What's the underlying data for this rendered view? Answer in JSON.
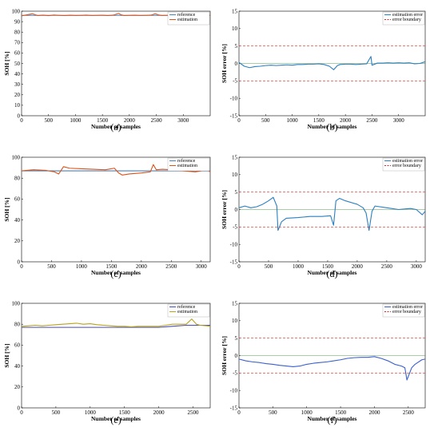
{
  "panels": [
    {
      "caption": "(a)",
      "chart_data": {
        "type": "line",
        "xlabel": "Number of samples",
        "ylabel": "SOH [%]",
        "xlim": [
          0,
          3500
        ],
        "ylim": [
          0,
          100
        ],
        "xticks": [
          0,
          500,
          1000,
          1500,
          2000,
          2500,
          3000
        ],
        "yticks": [
          0,
          10,
          20,
          30,
          40,
          50,
          60,
          70,
          80,
          90,
          100
        ],
        "legend_position": "top-right",
        "series": [
          {
            "name": "reference",
            "color": "#4a7fb8",
            "x": [
              0,
              3500
            ],
            "y": [
              96,
              96
            ]
          },
          {
            "name": "estimation",
            "color": "#d95319",
            "x": [
              0,
              100,
              200,
              300,
              400,
              500,
              600,
              700,
              800,
              900,
              1000,
              1100,
              1200,
              1300,
              1400,
              1500,
              1600,
              1700,
              1800,
              1850,
              1900,
              2000,
              2100,
              2200,
              2300,
              2400,
              2480,
              2550,
              2600,
              2700,
              2800,
              2900,
              3000,
              3100,
              3200,
              3300,
              3400,
              3500
            ],
            "y": [
              95.5,
              96.5,
              97.5,
              95.8,
              96.2,
              95.7,
              96.3,
              96,
              95.8,
              96.1,
              95.9,
              96,
              96.2,
              95.9,
              96,
              96.1,
              95.8,
              96.2,
              97.8,
              96.5,
              95.8,
              96,
              96.1,
              95.9,
              96,
              96.2,
              97.5,
              96.3,
              95.9,
              96,
              96.1,
              96,
              95.9,
              96,
              96.2,
              96,
              95.9,
              96
            ]
          }
        ]
      }
    },
    {
      "caption": "(b)",
      "chart_data": {
        "type": "line",
        "xlabel": "Number of samples",
        "ylabel": "SOH error [%]",
        "xlim": [
          0,
          3500
        ],
        "ylim": [
          -15,
          15
        ],
        "xticks": [
          0,
          500,
          1000,
          1500,
          2000,
          2500,
          3000
        ],
        "yticks": [
          -15,
          -10,
          -5,
          0,
          5,
          10,
          15
        ],
        "legend_position": "top-right",
        "series": [
          {
            "name": "estimation error",
            "color": "#2a7fc1",
            "x": [
              0,
              100,
              200,
              300,
              400,
              500,
              600,
              700,
              800,
              900,
              1000,
              1100,
              1200,
              1300,
              1400,
              1500,
              1600,
              1700,
              1780,
              1850,
              1900,
              2000,
              2100,
              2200,
              2300,
              2400,
              2480,
              2500,
              2600,
              2700,
              2800,
              2900,
              3000,
              3100,
              3200,
              3300,
              3400,
              3500
            ],
            "y": [
              0.3,
              -0.8,
              -1.2,
              -0.9,
              -0.8,
              -0.6,
              -0.5,
              -0.6,
              -0.5,
              -0.4,
              -0.5,
              -0.3,
              -0.3,
              -0.2,
              -0.2,
              -0.1,
              -0.3,
              -0.8,
              -1.8,
              -0.6,
              -0.3,
              -0.2,
              -0.2,
              -0.3,
              -0.2,
              -0.1,
              2.0,
              -0.5,
              0.1,
              0.1,
              0.2,
              0.1,
              0.2,
              0.1,
              0.2,
              -0.1,
              0.0,
              0.5
            ]
          },
          {
            "name": "error boundary",
            "color": "#d62728",
            "dashed": true,
            "x": [
              0,
              3500
            ],
            "y": [
              5,
              5
            ],
            "y2": [
              -5,
              -5
            ]
          }
        ]
      }
    },
    {
      "caption": "(c)",
      "chart_data": {
        "type": "line",
        "xlabel": "Number of samples",
        "ylabel": "SOH [%]",
        "xlim": [
          0,
          3150
        ],
        "ylim": [
          0,
          100
        ],
        "xticks": [
          0,
          500,
          1000,
          1500,
          2000,
          2500,
          3000
        ],
        "yticks": [
          0,
          20,
          40,
          60,
          80,
          100
        ],
        "legend_position": "top-right",
        "series": [
          {
            "name": "reference",
            "color": "#4a7fb8",
            "x": [
              0,
              3150
            ],
            "y": [
              87,
              87
            ]
          },
          {
            "name": "estimation",
            "color": "#d95319",
            "x": [
              0,
              200,
              400,
              550,
              620,
              700,
              800,
              1000,
              1200,
              1400,
              1550,
              1620,
              1680,
              1800,
              2000,
              2150,
              2200,
              2250,
              2350,
              2500,
              2700,
              2900,
              3000,
              3100,
              3150
            ],
            "y": [
              87,
              88,
              87.5,
              86,
              84,
              91,
              89.5,
              89,
              88.5,
              88,
              89.5,
              85,
              83,
              84,
              85,
              86,
              93,
              88,
              88.5,
              88,
              87,
              86,
              87,
              88,
              86
            ]
          }
        ]
      }
    },
    {
      "caption": "(d)",
      "chart_data": {
        "type": "line",
        "xlabel": "Number of samples",
        "ylabel": "SOH error [%]",
        "xlim": [
          0,
          3150
        ],
        "ylim": [
          -15,
          15
        ],
        "xticks": [
          0,
          500,
          1000,
          1500,
          2000,
          2500,
          3000
        ],
        "yticks": [
          -15,
          -10,
          -5,
          0,
          5,
          10,
          15
        ],
        "legend_position": "top-right",
        "series": [
          {
            "name": "estimation error",
            "color": "#2a7fc1",
            "x": [
              0,
              100,
              200,
              300,
              400,
              500,
              580,
              640,
              660,
              720,
              800,
              1000,
              1200,
              1400,
              1550,
              1600,
              1640,
              1700,
              1800,
              2000,
              2100,
              2150,
              2200,
              2250,
              2300,
              2500,
              2700,
              2900,
              3000,
              3100,
              3150
            ],
            "y": [
              0.5,
              1.0,
              0.5,
              0.8,
              1.5,
              2.5,
              3.5,
              1.0,
              -6.0,
              -3.5,
              -2.5,
              -2.3,
              -2.0,
              -2.0,
              -1.8,
              -4.5,
              2.5,
              3.2,
              2.5,
              1.5,
              0.5,
              -1.0,
              -6.0,
              -0.5,
              1.0,
              0.5,
              0.0,
              0.3,
              0.0,
              -1.5,
              -0.5
            ]
          },
          {
            "name": "error boundary",
            "color": "#d62728",
            "dashed": true,
            "x": [
              0,
              3150
            ],
            "y": [
              5,
              5
            ],
            "y2": [
              -5,
              -5
            ]
          }
        ]
      }
    },
    {
      "caption": "(e)",
      "chart_data": {
        "type": "line",
        "xlabel": "Number of samples",
        "ylabel": "SOH [%]",
        "xlim": [
          0,
          2750
        ],
        "ylim": [
          0,
          100
        ],
        "xticks": [
          0,
          500,
          1000,
          1500,
          2000,
          2500
        ],
        "yticks": [
          0,
          20,
          40,
          60,
          80,
          100
        ],
        "legend_position": "top-right",
        "series": [
          {
            "name": "reference",
            "color": "#4a4ab8",
            "x": [
              0,
              1000,
              2000,
              2200,
              2400,
              2600,
              2750
            ],
            "y": [
              77,
              77,
              77,
              78,
              79,
              79,
              79
            ]
          },
          {
            "name": "estimation",
            "color": "#b8a31c",
            "x": [
              0,
              100,
              200,
              300,
              400,
              500,
              600,
              700,
              800,
              900,
              1000,
              1100,
              1200,
              1300,
              1400,
              1500,
              1600,
              1700,
              1800,
              1900,
              2000,
              2100,
              2200,
              2300,
              2400,
              2480,
              2550,
              2600,
              2700,
              2750
            ],
            "y": [
              78,
              78.5,
              79,
              78.5,
              79,
              79.5,
              80,
              80.5,
              81,
              80,
              80.5,
              79.5,
              79,
              78.5,
              78,
              78,
              77.5,
              78,
              78,
              78,
              78,
              79,
              80,
              80,
              80,
              85,
              80,
              79,
              78.5,
              78
            ]
          }
        ]
      }
    },
    {
      "caption": "(f)",
      "chart_data": {
        "type": "line",
        "xlabel": "Number of samples",
        "ylabel": "SOH error [%]",
        "xlim": [
          0,
          2750
        ],
        "ylim": [
          -15,
          15
        ],
        "xticks": [
          0,
          500,
          1000,
          1500,
          2000,
          2500
        ],
        "yticks": [
          -15,
          -10,
          -5,
          0,
          5,
          10,
          15
        ],
        "legend_position": "top-right",
        "series": [
          {
            "name": "estimation error",
            "color": "#3a5fcd",
            "x": [
              0,
              100,
              200,
              300,
              400,
              500,
              600,
              700,
              800,
              900,
              1000,
              1100,
              1200,
              1300,
              1400,
              1500,
              1600,
              1700,
              1800,
              1900,
              2000,
              2100,
              2200,
              2300,
              2400,
              2450,
              2480,
              2550,
              2600,
              2700,
              2750
            ],
            "y": [
              -1.0,
              -1.5,
              -1.8,
              -2.0,
              -2.3,
              -2.5,
              -2.8,
              -3.0,
              -3.2,
              -3.0,
              -2.5,
              -2.2,
              -2.0,
              -1.8,
              -1.5,
              -1.2,
              -0.8,
              -0.6,
              -0.5,
              -0.5,
              -0.3,
              -0.8,
              -1.5,
              -2.5,
              -3.0,
              -3.5,
              -7.0,
              -3.5,
              -2.5,
              -1.2,
              -1.0
            ]
          },
          {
            "name": "error boundary",
            "color": "#d62728",
            "dashed": true,
            "x": [
              0,
              2750
            ],
            "y": [
              5,
              5
            ],
            "y2": [
              -5,
              -5
            ]
          }
        ]
      }
    }
  ]
}
